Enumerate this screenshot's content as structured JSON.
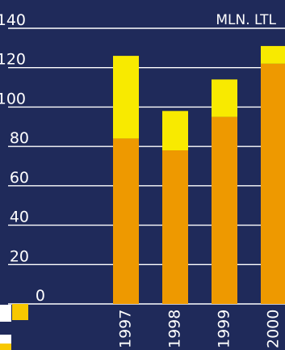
{
  "chart_data": {
    "type": "bar",
    "stacked": true,
    "categories": [
      "1997",
      "1998",
      "1999",
      "2000"
    ],
    "series": [
      {
        "values": [
          84,
          78,
          95,
          122
        ]
      },
      {
        "values": [
          42,
          20,
          19,
          9
        ]
      }
    ],
    "unit": "MLN. LTL",
    "ylim": [
      0,
      140
    ],
    "yticks": [
      0,
      20,
      40,
      60,
      80,
      100,
      120,
      140
    ],
    "grid": true,
    "x_tick_rotation": "vertical"
  },
  "colors": {
    "background": "#1f2a5a",
    "grid": "#ffffff",
    "text": "#ffffff",
    "series": [
      "#ee9900",
      "#f8ea00"
    ],
    "swatch": "#f8c800",
    "swatch_bg": "#ffffff"
  }
}
